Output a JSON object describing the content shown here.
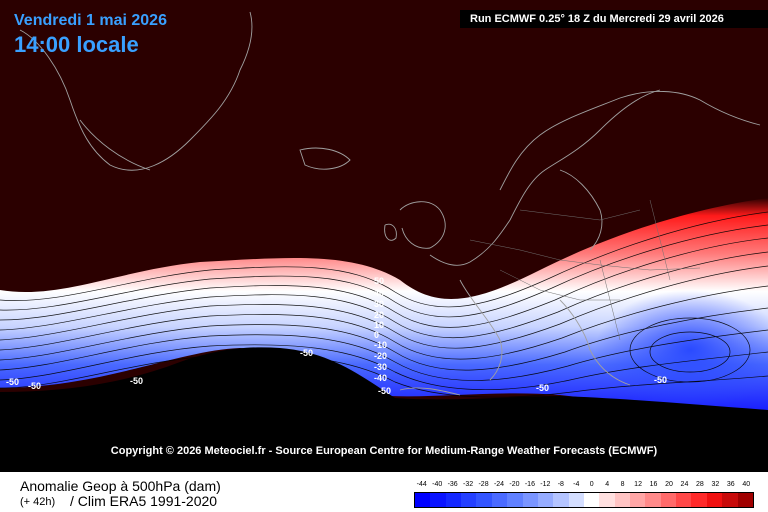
{
  "header": {
    "date": "Vendredi 1 mai 2026",
    "time": "14:00 locale",
    "run": "Run ECMWF 0.25° 18 Z du Mercredi 29 avril 2026"
  },
  "copyright": "Copyright © 2026 Meteociel.fr - Source European Centre for Medium-Range Weather Forecasts (ECMWF)",
  "legend": {
    "title": "Anomalie Geop à 500hPa (dam)",
    "lead": "(+ 42h)",
    "clim": "/ Clim ERA5 1991-2020",
    "ticks": [
      "-44",
      "-40",
      "-36",
      "-32",
      "-28",
      "-24",
      "-20",
      "-16",
      "-12",
      "-8",
      "-4",
      "0",
      "4",
      "8",
      "12",
      "16",
      "20",
      "24",
      "28",
      "32",
      "36",
      "40"
    ],
    "colors": [
      "#0000ff",
      "#0a14ff",
      "#1428ff",
      "#2440ff",
      "#3355ff",
      "#4a6aff",
      "#6080ff",
      "#7a95ff",
      "#96acff",
      "#b4c4ff",
      "#d4deff",
      "#ffffff",
      "#ffe0e0",
      "#ffc4c4",
      "#ffa6a6",
      "#ff8a8a",
      "#ff6a6a",
      "#ff4848",
      "#ff2a2a",
      "#f01010",
      "#c80a0a",
      "#a00000"
    ]
  },
  "map": {
    "colors": {
      "background": "#2b0000",
      "land_south": "#000000",
      "coast": "#a0a0a0"
    },
    "contour_labels_left": [
      "50",
      "40",
      "30",
      "20",
      "10",
      "0",
      "-10",
      "-20",
      "-30",
      "-40",
      "-50"
    ],
    "minimum_labels": [
      "-50",
      "-50",
      "-50",
      "-50",
      "-50",
      "-50"
    ]
  }
}
